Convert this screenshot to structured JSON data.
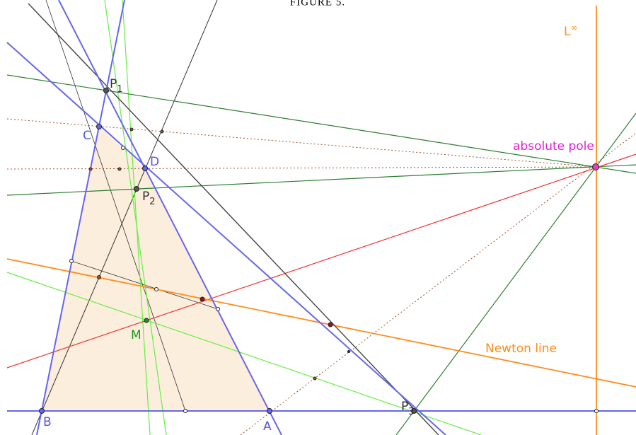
{
  "caption": "FIGURE 5.",
  "labels": [
    {
      "text": "P",
      "sub": "1"
    },
    {
      "text": "C"
    },
    {
      "text": "D"
    },
    {
      "text": "P",
      "sub": "2"
    },
    {
      "text": "M"
    },
    {
      "text": "B"
    },
    {
      "text": "A"
    },
    {
      "text": "P",
      "sub": "3"
    },
    {
      "text": "absolute pole"
    },
    {
      "text": "Newton line"
    },
    {
      "text": "L",
      "sup": "∞"
    }
  ]
}
